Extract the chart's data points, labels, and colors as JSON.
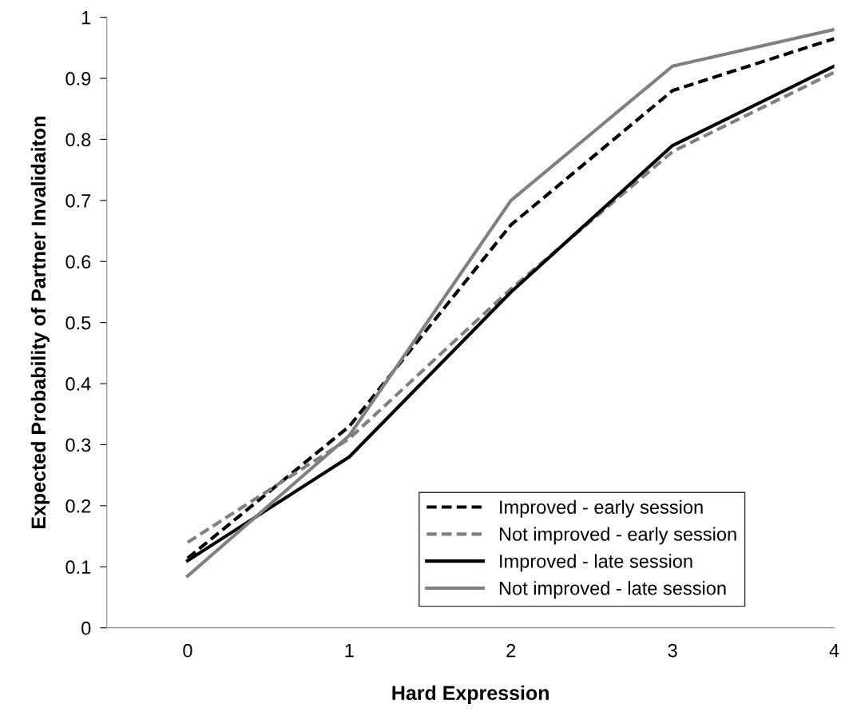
{
  "chart_data": {
    "type": "line",
    "xlabel": "Hard Expression",
    "ylabel": "Expected Probability of Partner Invalidaiton",
    "x": [
      0,
      1,
      2,
      3,
      4
    ],
    "xlim": [
      -0.5,
      4
    ],
    "xticks": [
      0,
      1,
      2,
      3,
      4
    ],
    "ylim": [
      0,
      1
    ],
    "yticks": [
      0,
      0.1,
      0.2,
      0.3,
      0.4,
      0.5,
      0.6,
      0.7,
      0.8,
      0.9,
      1
    ],
    "grid": false,
    "legend": "bottom right",
    "marker": "none",
    "series": [
      {
        "name": "Improved - early session",
        "color": "#000000",
        "line_style": "dashed",
        "values": [
          0.114,
          0.33,
          0.66,
          0.88,
          0.965
        ]
      },
      {
        "name": "Not improved - early session",
        "color": "#808080",
        "line_style": "dashed",
        "values": [
          0.14,
          0.31,
          0.555,
          0.78,
          0.91
        ]
      },
      {
        "name": "Improved - late session",
        "color": "#000000",
        "line_style": "solid",
        "values": [
          0.11,
          0.28,
          0.55,
          0.79,
          0.92
        ]
      },
      {
        "name": "Not improved - late session",
        "color": "#808080",
        "line_style": "solid",
        "values": [
          0.085,
          0.315,
          0.7,
          0.92,
          0.98
        ]
      }
    ]
  }
}
